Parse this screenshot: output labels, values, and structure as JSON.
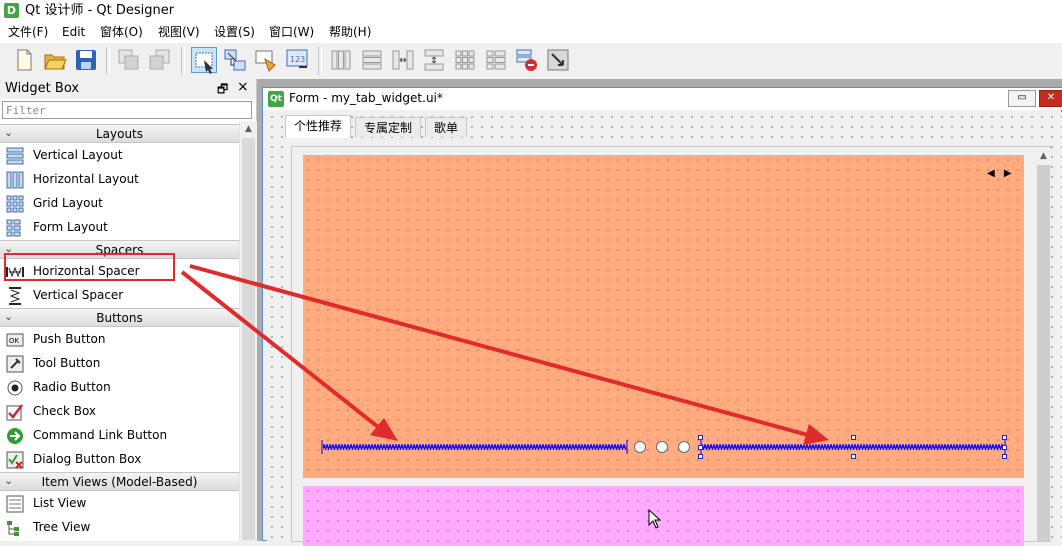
{
  "app": {
    "title": "Qt 设计师 - Qt Designer",
    "icon_letter": "D"
  },
  "menubar": [
    "文件(F)",
    "Edit",
    "窗体(O)",
    "视图(V)",
    "设置(S)",
    "窗口(W)",
    "帮助(H)"
  ],
  "toolbar": {
    "buttons": [
      "new-file-icon",
      "open-folder-icon",
      "save-icon",
      "cut-icon",
      "copy-icon",
      "edit-widgets-icon",
      "edit-signals-slots-icon",
      "edit-buddies-icon",
      "edit-tab-order-icon",
      "layout-horizontal-icon",
      "layout-vertical-icon",
      "layout-h-splitter-icon",
      "layout-v-splitter-icon",
      "layout-grid-icon",
      "layout-form-icon",
      "break-layout-icon",
      "adjust-size-icon"
    ],
    "active": "edit-widgets-icon"
  },
  "widget_box": {
    "title": "Widget Box",
    "float_symbol": "🗗",
    "close_symbol": "×",
    "filter_placeholder": "Filter",
    "categories": [
      {
        "label": "Layouts",
        "items": [
          {
            "label": "Vertical Layout",
            "icon": "vertical-layout-icon"
          },
          {
            "label": "Horizontal Layout",
            "icon": "horizontal-layout-icon"
          },
          {
            "label": "Grid Layout",
            "icon": "grid-layout-icon"
          },
          {
            "label": "Form Layout",
            "icon": "form-layout-icon"
          }
        ]
      },
      {
        "label": "Spacers",
        "items": [
          {
            "label": "Horizontal Spacer",
            "icon": "horizontal-spacer-icon"
          },
          {
            "label": "Vertical Spacer",
            "icon": "vertical-spacer-icon"
          }
        ]
      },
      {
        "label": "Buttons",
        "items": [
          {
            "label": "Push Button",
            "icon": "push-button-icon"
          },
          {
            "label": "Tool Button",
            "icon": "tool-button-icon"
          },
          {
            "label": "Radio Button",
            "icon": "radio-button-icon"
          },
          {
            "label": "Check Box",
            "icon": "check-box-icon"
          },
          {
            "label": "Command Link Button",
            "icon": "command-link-icon"
          },
          {
            "label": "Dialog Button Box",
            "icon": "dialog-button-box-icon"
          }
        ]
      },
      {
        "label": "Item Views (Model-Based)",
        "items": [
          {
            "label": "List View",
            "icon": "list-view-icon"
          },
          {
            "label": "Tree View",
            "icon": "tree-view-icon"
          }
        ]
      }
    ]
  },
  "form": {
    "title": "Form - my_tab_widget.ui*",
    "icon_letter": "Qt",
    "tabs": [
      "个性推荐",
      "专属定制",
      "歌单"
    ],
    "active_tab": 0,
    "stack_arrows": "◀ ▶",
    "window_buttons": {
      "minimize": "▭",
      "close": "✕"
    }
  },
  "colors": {
    "orange_panel": "#ffaa7f",
    "pink_panel": "#ffaaff",
    "spacer": "#0000ff",
    "annotation": "#e02b2b"
  }
}
